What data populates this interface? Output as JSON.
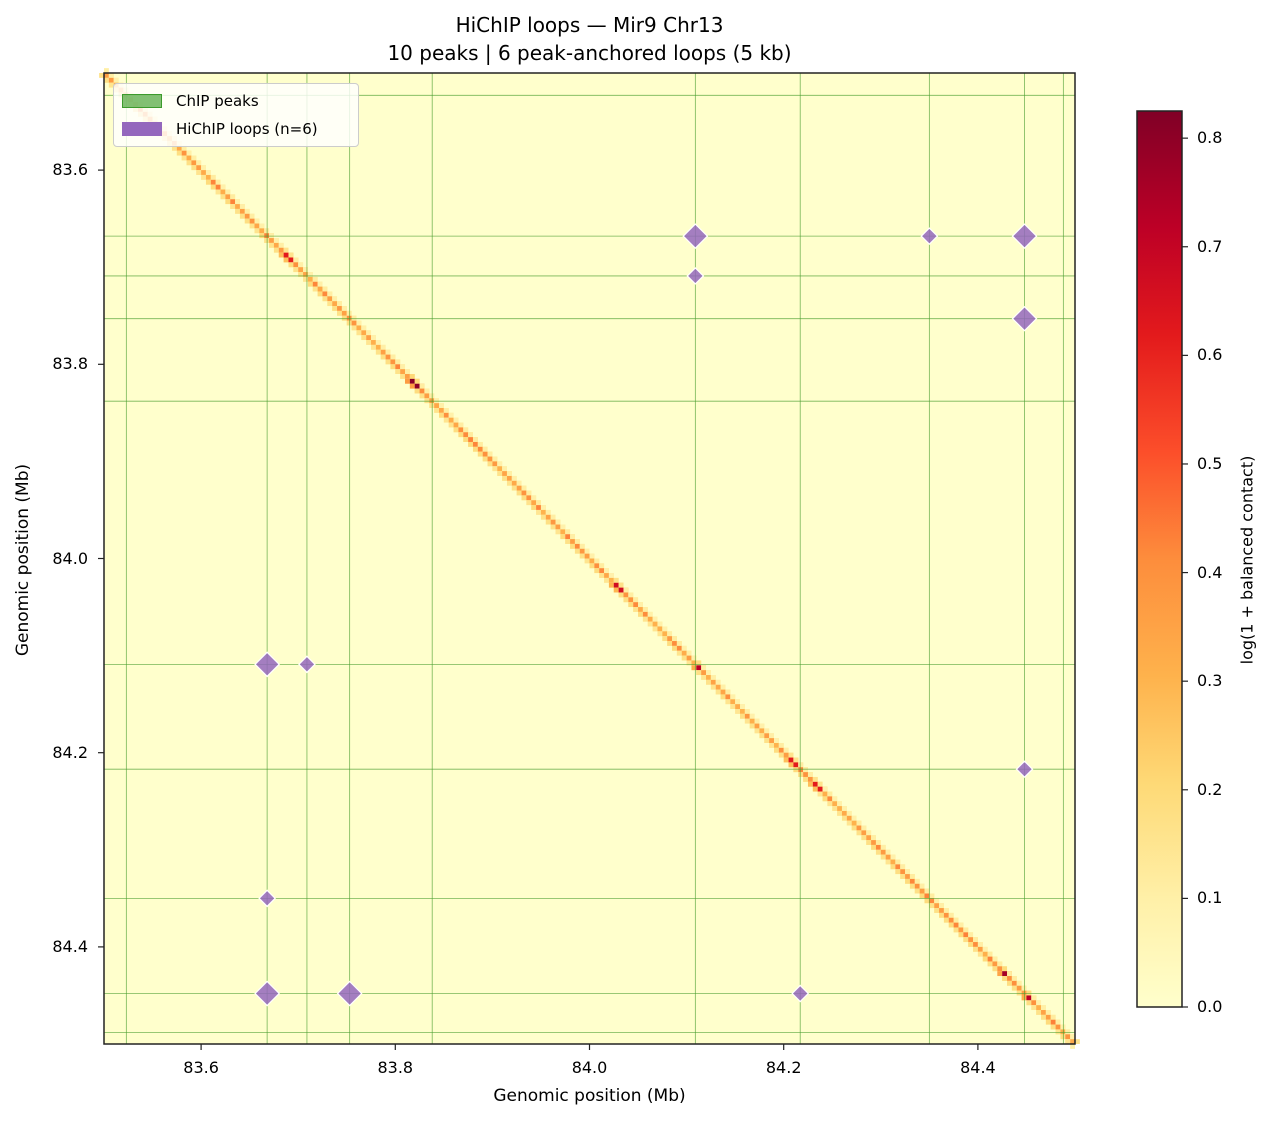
{
  "chart_data": {
    "type": "heatmap",
    "title": "HiChIP loops — Mir9 Chr13",
    "subtitle": "10 peaks  |  6 peak-anchored loops  (5 kb)",
    "xlabel": "Genomic position (Mb)",
    "ylabel": "Genomic position (Mb)",
    "xlim": [
      83.5,
      84.5
    ],
    "ylim": [
      84.5,
      83.5
    ],
    "x_ticks": [
      "83.6",
      "83.8",
      "84.0",
      "84.2",
      "84.4"
    ],
    "y_ticks": [
      "83.6",
      "83.8",
      "84.0",
      "84.2",
      "84.4"
    ],
    "tick_values": [
      83.6,
      83.8,
      84.0,
      84.2,
      84.4
    ],
    "resolution_kb": 5,
    "colormap": "YlOrRd",
    "colorbar": {
      "label": "log(1 + balanced contact)",
      "range": [
        0.0,
        0.825
      ],
      "ticks": [
        "0.0",
        "0.1",
        "0.2",
        "0.3",
        "0.4",
        "0.5",
        "0.6",
        "0.7",
        "0.8"
      ],
      "tick_values": [
        0.0,
        0.1,
        0.2,
        0.3,
        0.4,
        0.5,
        0.6,
        0.7,
        0.8
      ]
    },
    "diagonal": {
      "typical_value": 0.35,
      "hotspots": [
        {
          "pos": 83.818,
          "value": 0.8
        },
        {
          "pos": 84.028,
          "value": 0.65
        },
        {
          "pos": 84.111,
          "value": 0.7
        },
        {
          "pos": 83.688,
          "value": 0.6
        },
        {
          "pos": 84.424,
          "value": 0.75
        },
        {
          "pos": 84.449,
          "value": 0.7
        },
        {
          "pos": 84.208,
          "value": 0.6
        },
        {
          "pos": 84.233,
          "value": 0.6
        }
      ]
    },
    "chip_peaks_mb": [
      83.523,
      83.668,
      83.709,
      83.753,
      83.838,
      84.109,
      84.217,
      84.35,
      84.448,
      84.488
    ],
    "loops": [
      {
        "anchor1": 83.668,
        "anchor2": 84.109,
        "size": "large"
      },
      {
        "anchor1": 83.709,
        "anchor2": 84.109,
        "size": "small"
      },
      {
        "anchor1": 83.668,
        "anchor2": 84.35,
        "size": "small"
      },
      {
        "anchor1": 83.668,
        "anchor2": 84.448,
        "size": "large"
      },
      {
        "anchor1": 83.753,
        "anchor2": 84.448,
        "size": "large"
      },
      {
        "anchor1": 84.217,
        "anchor2": 84.448,
        "size": "small"
      }
    ],
    "legend": [
      {
        "label": "ChIP peaks",
        "color": "#6ab04c"
      },
      {
        "label": "HiChIP loops (n=6)",
        "color": "#9467bd"
      }
    ],
    "legend_position": "upper left",
    "grid": false
  },
  "colors": {
    "peak_line": "#4a9e2f",
    "loop_marker": "#9467bd",
    "background_min": "#ffffcc",
    "max": "#800026"
  }
}
